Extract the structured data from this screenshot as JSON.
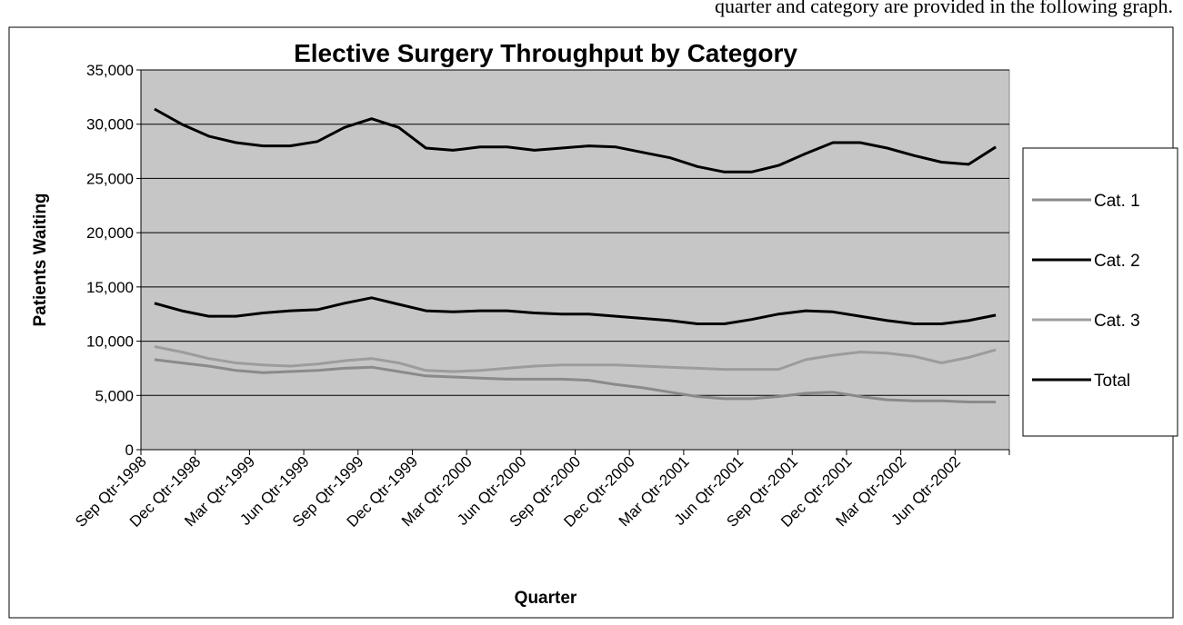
{
  "header": {
    "text": "quarter and category are provided in the following graph."
  },
  "chart_data": {
    "type": "line",
    "title": "Elective Surgery Throughput by Category",
    "xlabel": "Quarter",
    "ylabel": "Patients Waiting",
    "categories": [
      "Sep Qtr-1998",
      null,
      "Dec Qtr-1998",
      null,
      "Mar Qtr-1999",
      null,
      "Jun Qtr-1999",
      null,
      "Sep Qtr-1999",
      null,
      "Dec Qtr-1999",
      null,
      "Mar Qtr-2000",
      null,
      "Jun Qtr-2000",
      null,
      "Sep Qtr-2000",
      null,
      "Dec Qtr-2000",
      null,
      "Mar Qtr-2001",
      null,
      "Jun Qtr-2001",
      null,
      "Sep Qtr-2001",
      null,
      "Dec Qtr-2001",
      null,
      "Mar Qtr-2002",
      null,
      "Jun Qtr-2002",
      null
    ],
    "series": [
      {
        "name": "Cat. 1",
        "color": "#8a8a8a",
        "values": [
          8300,
          8000,
          7700,
          7300,
          7100,
          7200,
          7300,
          7500,
          7600,
          7200,
          6800,
          6700,
          6600,
          6500,
          6500,
          6500,
          6400,
          6000,
          5700,
          5300,
          4900,
          4700,
          4700,
          4900,
          5200,
          5300,
          4900,
          4600,
          4500,
          4500,
          4400,
          4400
        ]
      },
      {
        "name": "Cat. 2",
        "color": "#000000",
        "values": [
          13500,
          12800,
          12300,
          12300,
          12600,
          12800,
          12900,
          13500,
          14000,
          13400,
          12800,
          12700,
          12800,
          12800,
          12600,
          12500,
          12500,
          12300,
          12100,
          11900,
          11600,
          11600,
          12000,
          12500,
          12800,
          12700,
          12300,
          11900,
          11600,
          11600,
          11900,
          12400
        ]
      },
      {
        "name": "Cat. 3",
        "color": "#9c9c9c",
        "values": [
          9500,
          9000,
          8400,
          8000,
          7800,
          7700,
          7900,
          8200,
          8400,
          8000,
          7300,
          7200,
          7300,
          7500,
          7700,
          7800,
          7800,
          7800,
          7700,
          7600,
          7500,
          7400,
          7400,
          7400,
          8300,
          8700,
          9000,
          8900,
          8600,
          8000,
          8500,
          9200
        ]
      },
      {
        "name": "Total",
        "color": "#000000",
        "values": [
          31400,
          30000,
          28900,
          28300,
          28000,
          28000,
          28400,
          29700,
          30500,
          29700,
          27800,
          27600,
          27900,
          27900,
          27600,
          27800,
          28000,
          27900,
          27400,
          26900,
          26100,
          25600,
          25600,
          26200,
          27300,
          28300,
          28300,
          27800,
          27100,
          26500,
          26300,
          27900
        ]
      }
    ],
    "ylim": [
      0,
      35000
    ],
    "yticks": [
      0,
      {
        "value": 5000,
        "label": "5,000"
      },
      {
        "value": 10000,
        "label": "10,000"
      },
      {
        "value": 15000,
        "label": "15,000"
      },
      {
        "value": 20000,
        "label": "20,000"
      },
      {
        "value": 25000,
        "label": "25,000"
      },
      {
        "value": 30000,
        "label": "30,000"
      },
      {
        "value": 35000,
        "label": "35,000"
      }
    ],
    "grid": true,
    "legend": "right"
  }
}
